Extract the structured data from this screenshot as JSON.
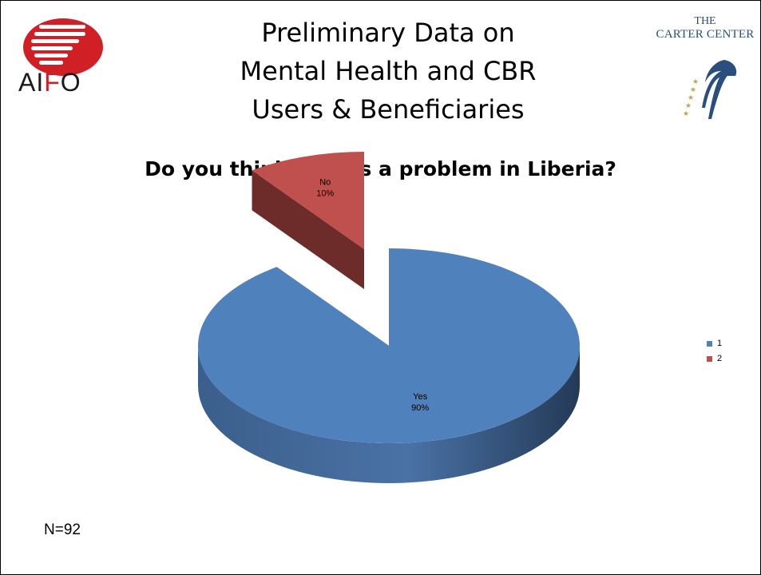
{
  "slide": {
    "title_lines": [
      "Preliminary Data on",
      "Mental Health and CBR",
      "Users & Beneficiaries"
    ],
    "note": "N=92"
  },
  "logos": {
    "aifo": {
      "text_plain": "AI",
      "text_red": "F",
      "text_plain2": "O"
    },
    "carter_center": {
      "line1": "THE",
      "line2": "CARTER CENTER"
    }
  },
  "colors": {
    "yes": "#4f81bd",
    "no": "#c0504d",
    "aifo_red": "#d11f26",
    "carter_blue": "#2a4f7e"
  },
  "chart_data": {
    "type": "pie",
    "title": "Do you think rape is a problem in Liberia?",
    "categories": [
      "Yes",
      "No"
    ],
    "values": [
      90,
      10
    ],
    "data_labels": [
      {
        "category": "Yes",
        "percent": "90%"
      },
      {
        "category": "No",
        "percent": "10%"
      }
    ],
    "legend": {
      "position": "right",
      "entries": [
        "1",
        "2"
      ]
    },
    "style": "3d-exploded"
  }
}
